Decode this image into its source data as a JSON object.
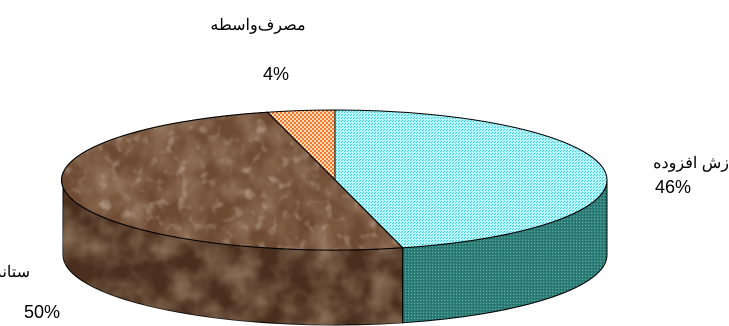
{
  "chart_data": {
    "type": "pie",
    "style": "3d",
    "slices": [
      {
        "label": "زش افزوده",
        "value": 46,
        "value_label": "46%",
        "color": "#7fe8f2"
      },
      {
        "label": "مصرف‌واسطه",
        "value": 4,
        "value_label": "4%",
        "color": "#f27a2a"
      },
      {
        "label": "ستانده",
        "value": 50,
        "value_label": "50%",
        "color": "#6e4a32"
      }
    ]
  }
}
